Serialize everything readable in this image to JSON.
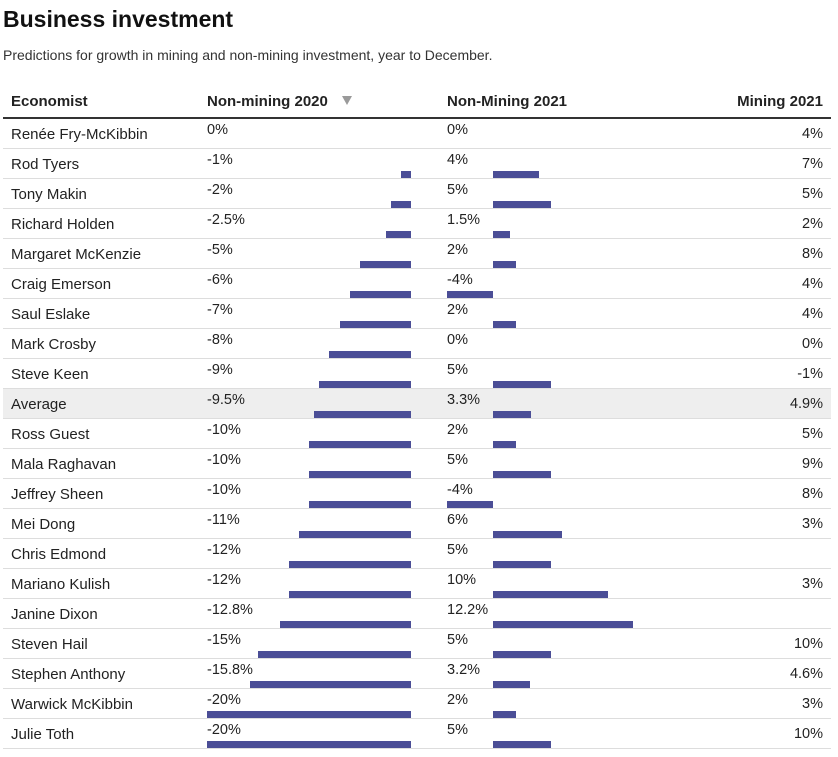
{
  "header": {
    "title": "Business investment",
    "subtitle": "Predictions for growth in mining and non-mining investment, year to December."
  },
  "table": {
    "columns": [
      "Economist",
      "Non-mining 2020",
      "Non-Mining 2021",
      "Mining 2021"
    ],
    "sort_column": "Non-mining 2020",
    "sort_icon": "sort-desc-icon"
  },
  "colors": {
    "bar": "#4b4e96",
    "average_row": "#eeeeee"
  },
  "chart_data": {
    "type": "table",
    "title": "Business investment",
    "subtitle": "Predictions for growth in mining and non-mining investment, year to December.",
    "columns": [
      "Economist",
      "Non-mining 2020",
      "Non-Mining 2021",
      "Mining 2021"
    ],
    "rows": [
      {
        "name": "Renée Fry-McKibbin",
        "nm2020": "0%",
        "nm2020_v": 0,
        "nm2021": "0%",
        "nm2021_v": 0,
        "m2021": "4%",
        "avg": false
      },
      {
        "name": "Rod Tyers",
        "nm2020": "-1%",
        "nm2020_v": -1,
        "nm2021": "4%",
        "nm2021_v": 4,
        "m2021": "7%",
        "avg": false
      },
      {
        "name": "Tony Makin",
        "nm2020": "-2%",
        "nm2020_v": -2,
        "nm2021": "5%",
        "nm2021_v": 5,
        "m2021": "5%",
        "avg": false
      },
      {
        "name": "Richard Holden",
        "nm2020": "-2.5%",
        "nm2020_v": -2.5,
        "nm2021": "1.5%",
        "nm2021_v": 1.5,
        "m2021": "2%",
        "avg": false
      },
      {
        "name": "Margaret McKenzie",
        "nm2020": "-5%",
        "nm2020_v": -5,
        "nm2021": "2%",
        "nm2021_v": 2,
        "m2021": "8%",
        "avg": false
      },
      {
        "name": "Craig Emerson",
        "nm2020": "-6%",
        "nm2020_v": -6,
        "nm2021": "-4%",
        "nm2021_v": -4,
        "m2021": "4%",
        "avg": false
      },
      {
        "name": "Saul Eslake",
        "nm2020": "-7%",
        "nm2020_v": -7,
        "nm2021": "2%",
        "nm2021_v": 2,
        "m2021": "4%",
        "avg": false
      },
      {
        "name": "Mark Crosby",
        "nm2020": "-8%",
        "nm2020_v": -8,
        "nm2021": "0%",
        "nm2021_v": 0,
        "m2021": "0%",
        "avg": false
      },
      {
        "name": "Steve Keen",
        "nm2020": "-9%",
        "nm2020_v": -9,
        "nm2021": "5%",
        "nm2021_v": 5,
        "m2021": "-1%",
        "avg": false
      },
      {
        "name": "Average",
        "nm2020": "-9.5%",
        "nm2020_v": -9.5,
        "nm2021": "3.3%",
        "nm2021_v": 3.3,
        "m2021": "4.9%",
        "avg": true
      },
      {
        "name": "Ross Guest",
        "nm2020": "-10%",
        "nm2020_v": -10,
        "nm2021": "2%",
        "nm2021_v": 2,
        "m2021": "5%",
        "avg": false
      },
      {
        "name": "Mala Raghavan",
        "nm2020": "-10%",
        "nm2020_v": -10,
        "nm2021": "5%",
        "nm2021_v": 5,
        "m2021": "9%",
        "avg": false
      },
      {
        "name": "Jeffrey Sheen",
        "nm2020": "-10%",
        "nm2020_v": -10,
        "nm2021": "-4%",
        "nm2021_v": -4,
        "m2021": "8%",
        "avg": false
      },
      {
        "name": "Mei Dong",
        "nm2020": "-11%",
        "nm2020_v": -11,
        "nm2021": "6%",
        "nm2021_v": 6,
        "m2021": "3%",
        "avg": false
      },
      {
        "name": "Chris Edmond",
        "nm2020": "-12%",
        "nm2020_v": -12,
        "nm2021": "5%",
        "nm2021_v": 5,
        "m2021": "",
        "avg": false
      },
      {
        "name": "Mariano Kulish",
        "nm2020": "-12%",
        "nm2020_v": -12,
        "nm2021": "10%",
        "nm2021_v": 10,
        "m2021": "3%",
        "avg": false
      },
      {
        "name": "Janine Dixon",
        "nm2020": "-12.8%",
        "nm2020_v": -12.8,
        "nm2021": "12.2%",
        "nm2021_v": 12.2,
        "m2021": "",
        "avg": false
      },
      {
        "name": "Steven Hail",
        "nm2020": "-15%",
        "nm2020_v": -15,
        "nm2021": "5%",
        "nm2021_v": 5,
        "m2021": "10%",
        "avg": false
      },
      {
        "name": "Stephen Anthony",
        "nm2020": "-15.8%",
        "nm2020_v": -15.8,
        "nm2021": "3.2%",
        "nm2021_v": 3.2,
        "m2021": "4.6%",
        "avg": false
      },
      {
        "name": "Warwick McKibbin",
        "nm2020": "-20%",
        "nm2020_v": -20,
        "nm2021": "2%",
        "nm2021_v": 2,
        "m2021": "3%",
        "avg": false
      },
      {
        "name": "Julie Toth",
        "nm2020": "-20%",
        "nm2020_v": -20,
        "nm2021": "5%",
        "nm2021_v": 5,
        "m2021": "10%",
        "avg": false
      }
    ]
  }
}
